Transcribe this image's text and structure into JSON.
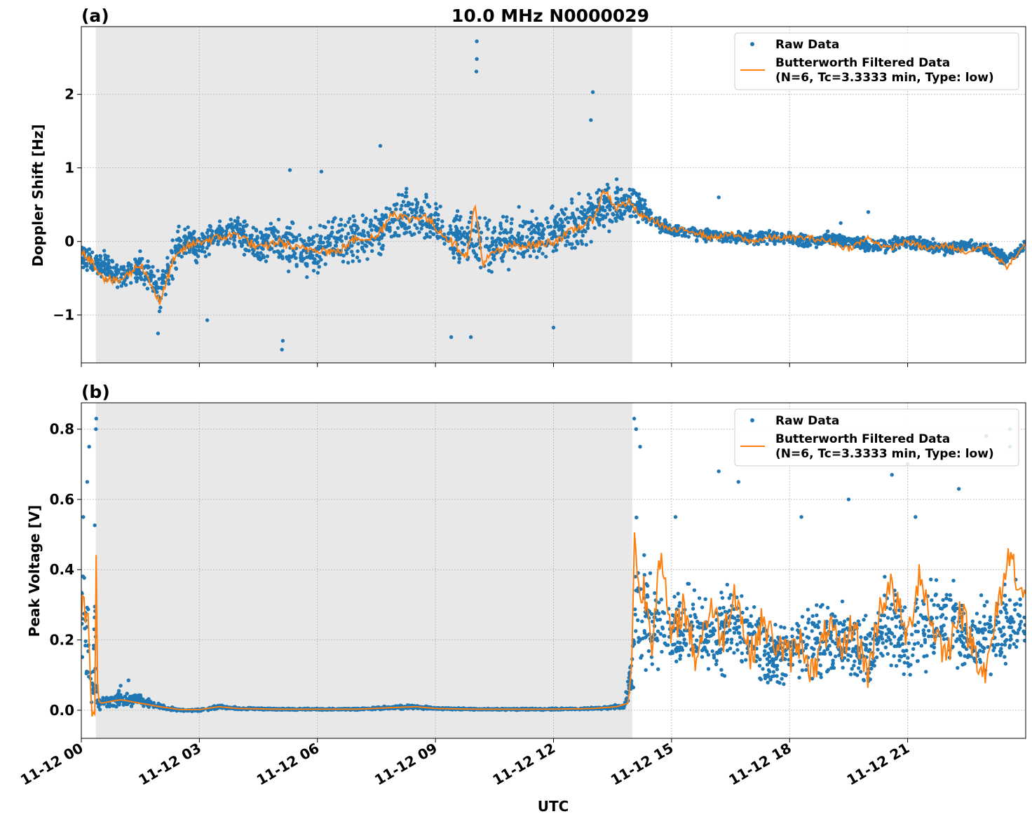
{
  "chart_data": [
    {
      "panel_label": "(a)",
      "title": "10.0 MHz N0000029",
      "type": "scatter",
      "ylabel": "Doppler Shift [Hz]",
      "xlabel": "",
      "xlim": [
        0,
        24
      ],
      "ylim": [
        -1.65,
        2.92
      ],
      "yticks": [
        -1,
        0,
        1,
        2
      ],
      "ytick_labels": [
        "−1",
        "0",
        "1",
        "2"
      ],
      "grid": true,
      "shaded_interval": [
        0.37,
        14.0
      ],
      "legend": {
        "placement": "top-right",
        "entries": [
          "Raw Data",
          "Butterworth Filtered Data",
          "(N=6, Tc=3.3333 min, Type: low)"
        ]
      },
      "series": [
        {
          "name": "Raw Data",
          "kind": "points",
          "color": "#1f77b4",
          "x": [
            0,
            0.5,
            1.0,
            1.5,
            2.0,
            2.5,
            3.0,
            3.5,
            4.0,
            4.5,
            5.0,
            5.5,
            6.0,
            6.5,
            7.0,
            7.5,
            8.0,
            8.5,
            9.0,
            9.5,
            10.0,
            10.5,
            11.0,
            11.5,
            12.0,
            12.5,
            13.0,
            13.5,
            14.0,
            14.5,
            15.0,
            15.5,
            16.0,
            16.5,
            17.0,
            17.5,
            18.0,
            18.5,
            19.0,
            19.5,
            20.0,
            20.5,
            21.0,
            21.5,
            22.0,
            22.5,
            23.0,
            23.5,
            24.0
          ],
          "y": [
            -0.2,
            -0.3,
            -0.5,
            -0.35,
            -0.7,
            0.0,
            -0.05,
            0.1,
            0.1,
            -0.05,
            0.0,
            -0.1,
            -0.15,
            0.0,
            0.05,
            0.1,
            0.3,
            0.35,
            0.25,
            0.05,
            0.0,
            -0.05,
            0.05,
            0.05,
            0.1,
            0.2,
            0.4,
            0.5,
            0.55,
            0.3,
            0.15,
            0.1,
            0.1,
            0.05,
            0.05,
            0.05,
            0.05,
            0.0,
            0.05,
            0.0,
            -0.05,
            -0.05,
            0.0,
            -0.05,
            -0.1,
            -0.05,
            -0.1,
            -0.25,
            -0.05
          ],
          "spread": [
            0.25,
            0.25,
            0.3,
            0.35,
            0.35,
            0.35,
            0.3,
            0.25,
            0.3,
            0.4,
            0.45,
            0.45,
            0.45,
            0.45,
            0.45,
            0.45,
            0.45,
            0.45,
            0.4,
            0.5,
            0.55,
            0.5,
            0.5,
            0.45,
            0.45,
            0.45,
            0.45,
            0.45,
            0.35,
            0.15,
            0.1,
            0.12,
            0.12,
            0.12,
            0.12,
            0.12,
            0.12,
            0.12,
            0.12,
            0.12,
            0.12,
            0.12,
            0.12,
            0.12,
            0.12,
            0.12,
            0.12,
            0.12,
            0.1
          ],
          "outliers": [
            [
              1.95,
              -1.25
            ],
            [
              5.1,
              -1.47
            ],
            [
              5.12,
              -1.35
            ],
            [
              10.05,
              2.72
            ],
            [
              10.05,
              2.48
            ],
            [
              10.04,
              2.31
            ],
            [
              13.0,
              2.03
            ],
            [
              12.95,
              1.65
            ],
            [
              9.4,
              -1.3
            ],
            [
              9.9,
              -1.3
            ],
            [
              12.0,
              -1.17
            ],
            [
              7.6,
              1.3
            ],
            [
              5.3,
              0.97
            ],
            [
              6.1,
              0.95
            ],
            [
              16.2,
              0.6
            ],
            [
              20.0,
              0.4
            ],
            [
              19.3,
              0.25
            ],
            [
              3.2,
              -1.07
            ]
          ]
        },
        {
          "name": "Butterworth Filtered Data",
          "kind": "line",
          "color": "#ff7f0e",
          "x": [
            0,
            0.3,
            0.6,
            0.9,
            1.2,
            1.5,
            1.8,
            2.0,
            2.3,
            2.6,
            3.0,
            3.5,
            4.0,
            4.5,
            5.0,
            5.5,
            6.0,
            6.5,
            7.0,
            7.5,
            7.9,
            8.3,
            8.7,
            9.0,
            9.4,
            9.8,
            10.0,
            10.2,
            10.5,
            11.0,
            11.5,
            12.0,
            12.5,
            13.0,
            13.3,
            13.6,
            13.9,
            14.2,
            14.5,
            15.0,
            15.5,
            16.0,
            16.5,
            17.0,
            17.5,
            18.0,
            18.5,
            19.0,
            19.5,
            20.0,
            20.5,
            21.0,
            21.5,
            22.0,
            22.5,
            23.0,
            23.5,
            24.0
          ],
          "y": [
            -0.1,
            -0.3,
            -0.5,
            -0.55,
            -0.45,
            -0.3,
            -0.6,
            -0.85,
            -0.3,
            -0.1,
            0.0,
            0.05,
            0.1,
            -0.1,
            0.0,
            -0.1,
            -0.1,
            -0.15,
            0.05,
            0.05,
            0.4,
            0.3,
            0.35,
            0.2,
            0.0,
            -0.2,
            0.5,
            -0.3,
            -0.15,
            -0.05,
            -0.05,
            0.0,
            0.15,
            0.3,
            0.7,
            0.45,
            0.55,
            0.35,
            0.3,
            0.15,
            0.15,
            0.05,
            0.1,
            0.0,
            0.05,
            0.05,
            0.05,
            0.0,
            -0.1,
            0.05,
            -0.1,
            0.0,
            -0.1,
            -0.05,
            -0.15,
            -0.05,
            -0.35,
            -0.05
          ]
        }
      ]
    },
    {
      "panel_label": "(b)",
      "title": "",
      "type": "scatter",
      "ylabel": "Peak Voltage [V]",
      "xlabel": "UTC",
      "xlim": [
        0,
        24
      ],
      "ylim": [
        -0.08,
        0.875
      ],
      "yticks": [
        0.0,
        0.2,
        0.4,
        0.6,
        0.8
      ],
      "ytick_labels": [
        "0.0",
        "0.2",
        "0.4",
        "0.6",
        "0.8"
      ],
      "xticks": [
        0,
        3,
        6,
        9,
        12,
        15,
        18,
        21
      ],
      "xtick_labels": [
        "11-12 00",
        "11-12 03",
        "11-12 06",
        "11-12 09",
        "11-12 12",
        "11-12 15",
        "11-12 18",
        "11-12 21"
      ],
      "grid": true,
      "shaded_interval": [
        0.37,
        14.0
      ],
      "legend": {
        "placement": "top-right",
        "entries": [
          "Raw Data",
          "Butterworth Filtered Data",
          "(N=6, Tc=3.3333 min, Type: low)"
        ]
      },
      "series": [
        {
          "name": "Raw Data",
          "kind": "points",
          "color": "#1f77b4",
          "x": [
            0,
            0.1,
            0.2,
            0.3,
            0.35,
            0.4,
            0.5,
            1.0,
            1.5,
            2.0,
            2.5,
            3.0,
            3.5,
            4.0,
            5.0,
            6.0,
            7.0,
            8.0,
            8.5,
            9.0,
            10.0,
            11.0,
            12.0,
            13.0,
            13.8,
            14.0,
            14.1,
            14.2,
            14.5,
            15.0,
            15.5,
            16.0,
            16.5,
            17.0,
            17.5,
            18.0,
            18.5,
            19.0,
            19.5,
            20.0,
            20.5,
            21.0,
            21.5,
            22.0,
            22.5,
            23.0,
            23.5,
            24.0
          ],
          "y": [
            0.3,
            0.25,
            0.15,
            0.05,
            0.35,
            0.02,
            0.02,
            0.03,
            0.03,
            0.01,
            0.0,
            0.0,
            0.01,
            0.005,
            0.003,
            0.003,
            0.003,
            0.008,
            0.01,
            0.005,
            0.003,
            0.003,
            0.003,
            0.005,
            0.01,
            0.12,
            0.35,
            0.3,
            0.25,
            0.22,
            0.25,
            0.2,
            0.25,
            0.2,
            0.15,
            0.17,
            0.2,
            0.2,
            0.18,
            0.15,
            0.25,
            0.2,
            0.25,
            0.25,
            0.2,
            0.2,
            0.25,
            0.25
          ],
          "spread": [
            0.2,
            0.2,
            0.15,
            0.05,
            0.35,
            0.02,
            0.02,
            0.03,
            0.02,
            0.01,
            0.004,
            0.004,
            0.008,
            0.004,
            0.003,
            0.003,
            0.003,
            0.006,
            0.008,
            0.004,
            0.003,
            0.003,
            0.003,
            0.004,
            0.008,
            0.1,
            0.25,
            0.2,
            0.18,
            0.15,
            0.15,
            0.15,
            0.15,
            0.15,
            0.13,
            0.13,
            0.15,
            0.15,
            0.14,
            0.13,
            0.16,
            0.16,
            0.16,
            0.16,
            0.16,
            0.16,
            0.16,
            0.15
          ],
          "outliers": [
            [
              0.38,
              0.83
            ],
            [
              0.37,
              0.8
            ],
            [
              0.2,
              0.75
            ],
            [
              0.15,
              0.65
            ],
            [
              0.05,
              0.55
            ],
            [
              14.05,
              0.83
            ],
            [
              14.1,
              0.8
            ],
            [
              14.2,
              0.75
            ],
            [
              15.1,
              0.55
            ],
            [
              16.2,
              0.68
            ],
            [
              16.7,
              0.65
            ],
            [
              18.3,
              0.55
            ],
            [
              19.5,
              0.6
            ],
            [
              20.6,
              0.67
            ],
            [
              21.0,
              0.7
            ],
            [
              21.2,
              0.55
            ],
            [
              22.3,
              0.63
            ],
            [
              23.0,
              0.78
            ],
            [
              23.6,
              0.8
            ],
            [
              23.6,
              0.75
            ],
            [
              1.2,
              0.085
            ],
            [
              1.0,
              0.07
            ]
          ]
        },
        {
          "name": "Butterworth Filtered Data",
          "kind": "line",
          "color": "#ff7f0e",
          "x": [
            0,
            0.05,
            0.1,
            0.15,
            0.2,
            0.25,
            0.3,
            0.33,
            0.36,
            0.38,
            0.42,
            0.5,
            1.0,
            1.5,
            2.0,
            2.5,
            3.0,
            3.5,
            4.0,
            5.0,
            6.0,
            7.0,
            8.0,
            8.5,
            9.0,
            10.0,
            11.0,
            12.0,
            13.0,
            13.6,
            13.9,
            14.0,
            14.05,
            14.1,
            14.2,
            14.3,
            14.5,
            14.7,
            15.0,
            15.3,
            15.6,
            16.0,
            16.3,
            16.6,
            17.0,
            17.3,
            17.6,
            18.0,
            18.3,
            18.6,
            19.0,
            19.3,
            19.6,
            20.0,
            20.3,
            20.6,
            21.0,
            21.3,
            21.6,
            22.0,
            22.3,
            22.6,
            23.0,
            23.3,
            23.6,
            24.0
          ],
          "y": [
            0.25,
            0.4,
            0.2,
            0.35,
            0.15,
            0.05,
            0.0,
            -0.04,
            0.1,
            0.45,
            0.03,
            0.02,
            0.03,
            0.02,
            0.01,
            0.002,
            0.002,
            0.01,
            0.005,
            0.003,
            0.003,
            0.003,
            0.008,
            0.01,
            0.005,
            0.003,
            0.003,
            0.003,
            0.005,
            0.01,
            0.02,
            0.15,
            0.5,
            0.45,
            0.3,
            0.35,
            0.2,
            0.45,
            0.2,
            0.3,
            0.15,
            0.3,
            0.2,
            0.35,
            0.15,
            0.25,
            0.2,
            0.15,
            0.2,
            0.1,
            0.25,
            0.15,
            0.25,
            0.1,
            0.3,
            0.35,
            0.2,
            0.4,
            0.25,
            0.15,
            0.3,
            0.2,
            0.1,
            0.3,
            0.45,
            0.3
          ]
        }
      ]
    }
  ]
}
